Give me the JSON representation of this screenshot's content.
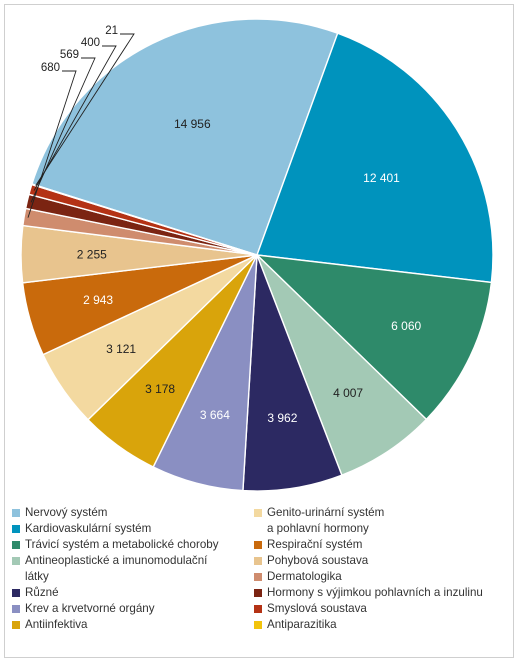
{
  "chart_data": {
    "type": "pie",
    "title": "",
    "slices": [
      {
        "label": "Nervový systém",
        "value": 14956,
        "value_label": "14 956",
        "color": "#8ec2dd"
      },
      {
        "label": "Kardiovaskulární systém",
        "value": 12401,
        "value_label": "12 401",
        "color": "#0093bd"
      },
      {
        "label": "Trávicí systém a metabolické choroby",
        "value": 6060,
        "value_label": "6 060",
        "color": "#2e8a6a"
      },
      {
        "label": "Antineoplastické a imunomodulační látky",
        "value": 4007,
        "value_label": "4 007",
        "color": "#a3c9b5"
      },
      {
        "label": "Různé",
        "value": 3962,
        "value_label": "3 962",
        "color": "#2c2962"
      },
      {
        "label": "Krev a krvetvorné orgány",
        "value": 3664,
        "value_label": "3 664",
        "color": "#8a8fc2"
      },
      {
        "label": "Antiinfektiva",
        "value": 3178,
        "value_label": "3 178",
        "color": "#d9a40b"
      },
      {
        "label": "Genito-urinární systém a pohlavní hormony",
        "value": 3121,
        "value_label": "3 121",
        "color": "#f3d9a0"
      },
      {
        "label": "Respirační systém",
        "value": 2943,
        "value_label": "2 943",
        "color": "#c96a0c"
      },
      {
        "label": "Pohybová soustava",
        "value": 2255,
        "value_label": "2 255",
        "color": "#e8c48e"
      },
      {
        "label": "Dermatologika",
        "value": 680,
        "value_label": "680",
        "color": "#cf8c6e"
      },
      {
        "label": "Hormony s výjimkou pohlavních a inzulinu",
        "value": 569,
        "value_label": "569",
        "color": "#7b2412"
      },
      {
        "label": "Smyslová soustava",
        "value": 400,
        "value_label": "400",
        "color": "#b43215"
      },
      {
        "label": "Antiparazitika",
        "value": 21,
        "value_label": "21",
        "color": "#f2c40c"
      }
    ],
    "legend": {
      "placement": "bottom",
      "left": [
        {
          "slice": 0,
          "lines": [
            "Nervový systém"
          ]
        },
        {
          "slice": 1,
          "lines": [
            "Kardiovaskulární systém"
          ]
        },
        {
          "slice": 2,
          "lines": [
            "Trávicí systém a metabolické choroby"
          ]
        },
        {
          "slice": 3,
          "lines": [
            "Antineoplastické a imunomodulační",
            "látky"
          ]
        },
        {
          "slice": 4,
          "lines": [
            "Různé"
          ]
        },
        {
          "slice": 5,
          "lines": [
            "Krev a krvetvorné orgány"
          ]
        },
        {
          "slice": 6,
          "lines": [
            "Antiinfektiva"
          ]
        }
      ],
      "right": [
        {
          "slice": 7,
          "lines": [
            "Genito-urinární systém",
            "a pohlavní hormony"
          ]
        },
        {
          "slice": 8,
          "lines": [
            "Respirační systém"
          ]
        },
        {
          "slice": 9,
          "lines": [
            "Pohybová soustava"
          ]
        },
        {
          "slice": 10,
          "lines": [
            "Dermatologika"
          ]
        },
        {
          "slice": 11,
          "lines": [
            "Hormony s výjimkou pohlavních a inzulinu"
          ]
        },
        {
          "slice": 12,
          "lines": [
            "Smyslová soustava"
          ]
        },
        {
          "slice": 13,
          "lines": [
            "Antiparazitika"
          ]
        }
      ]
    }
  }
}
